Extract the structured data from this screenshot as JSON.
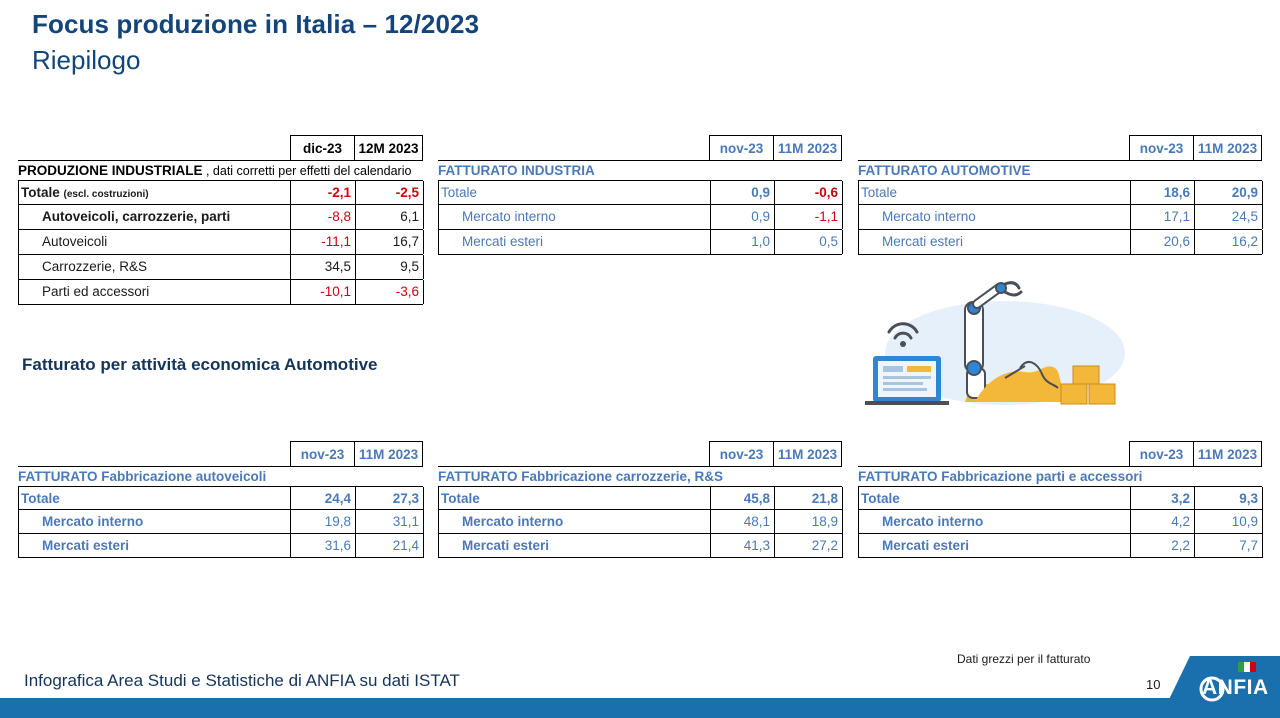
{
  "header": {
    "title": "Focus produzione in Italia – 12/2023",
    "subtitle": "Riepilogo"
  },
  "tables": {
    "produzione": {
      "col1": "dic-23",
      "col2": "12M 2023",
      "caption_bold": "PRODUZIONE INDUSTRIALE",
      "caption_rest": " , dati corretti per effetti del calendario",
      "total_label": "Totale",
      "total_note": "(escl. costruzioni)",
      "rows": [
        {
          "label": "Totale",
          "v1": "-2,1",
          "v2": "-2,5"
        },
        {
          "label": "Autoveicoli, carrozzerie, parti",
          "v1": "-8,8",
          "v2": "6,1"
        },
        {
          "label": "Autoveicoli",
          "v1": "-11,1",
          "v2": "16,7"
        },
        {
          "label": "Carrozzerie, R&S",
          "v1": "34,5",
          "v2": "9,5"
        },
        {
          "label": "Parti ed accessori",
          "v1": "-10,1",
          "v2": "-3,6"
        }
      ]
    },
    "fatt_industria": {
      "col1": "nov-23",
      "col2": "11M 2023",
      "caption": "FATTURATO INDUSTRIA",
      "rows": [
        {
          "label": "Totale",
          "v1": "0,9",
          "v2": "-0,6"
        },
        {
          "label": "Mercato interno",
          "v1": "0,9",
          "v2": "-1,1"
        },
        {
          "label": "Mercati esteri",
          "v1": "1,0",
          "v2": "0,5"
        }
      ]
    },
    "fatt_automotive": {
      "col1": "nov-23",
      "col2": "11M 2023",
      "caption": "FATTURATO AUTOMOTIVE",
      "rows": [
        {
          "label": "Totale",
          "v1": "18,6",
          "v2": "20,9"
        },
        {
          "label": "Mercato interno",
          "v1": "17,1",
          "v2": "24,5"
        },
        {
          "label": "Mercati esteri",
          "v1": "20,6",
          "v2": "16,2"
        }
      ]
    },
    "fatt_autoveicoli": {
      "col1": "nov-23",
      "col2": "11M 2023",
      "caption": "FATTURATO Fabbricazione autoveicoli",
      "rows": [
        {
          "label": "Totale",
          "v1": "24,4",
          "v2": "27,3"
        },
        {
          "label": "Mercato interno",
          "v1": "19,8",
          "v2": "31,1"
        },
        {
          "label": "Mercati esteri",
          "v1": "31,6",
          "v2": "21,4"
        }
      ]
    },
    "fatt_carrozzerie": {
      "col1": "nov-23",
      "col2": "11M 2023",
      "caption": "FATTURATO Fabbricazione carrozzerie, R&S",
      "rows": [
        {
          "label": "Totale",
          "v1": "45,8",
          "v2": "21,8"
        },
        {
          "label": "Mercato interno",
          "v1": "48,1",
          "v2": "18,9"
        },
        {
          "label": "Mercati esteri",
          "v1": "41,3",
          "v2": "27,2"
        }
      ]
    },
    "fatt_parti": {
      "col1": "nov-23",
      "col2": "11M 2023",
      "caption": "FATTURATO Fabbricazione parti e accessori",
      "rows": [
        {
          "label": "Totale",
          "v1": "3,2",
          "v2": "9,3"
        },
        {
          "label": "Mercato interno",
          "v1": "4,2",
          "v2": "10,9"
        },
        {
          "label": "Mercati esteri",
          "v1": "2,2",
          "v2": "7,7"
        }
      ]
    }
  },
  "section": {
    "title": "Fatturato per attività economica Automotive"
  },
  "footer": {
    "source": "Infografica Area Studi e Statistiche di ANFIA su dati ISTAT",
    "note": "Dati grezzi per il fatturato",
    "page": "10",
    "logo": "ANFIA"
  },
  "colors": {
    "title": "#14457a",
    "blue_text": "#4a79b8",
    "negative": "#d0000f",
    "bar": "#1a6fad"
  },
  "illustration": {
    "icon": "industrial-robot-arm-illustration"
  }
}
